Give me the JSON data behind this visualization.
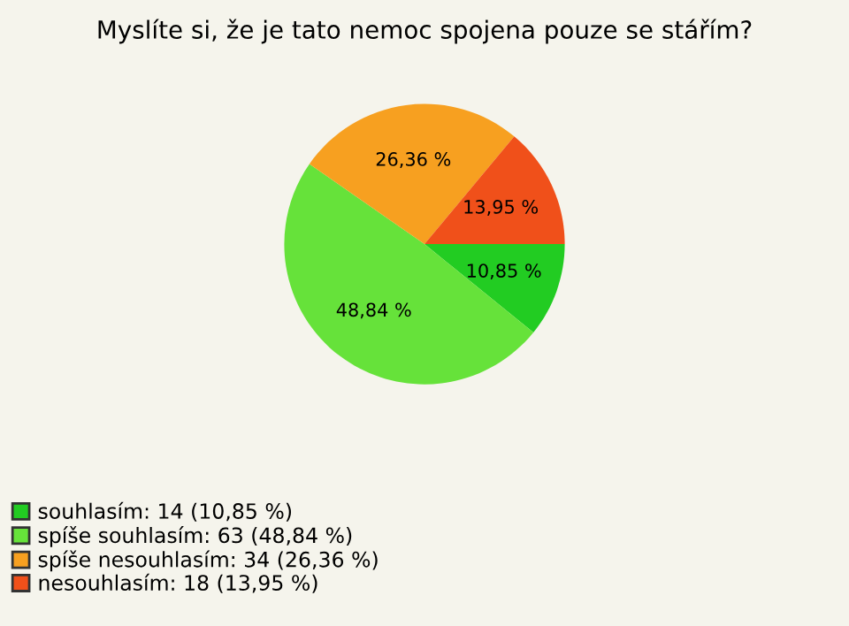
{
  "chart_data": {
    "type": "pie",
    "title": "Myslíte si, že je tato nemoc spojena pouze se stářím?",
    "categories": [
      "souhlasím: 14 (10,85 %)",
      "spíše souhlasím: 63 (48,84 %)",
      "spíše nesouhlasím: 34 (26,36 %)",
      "nesouhlasím: 18 (13,95 %)"
    ],
    "values": [
      10.85,
      48.84,
      26.36,
      13.95
    ],
    "value_labels": [
      "10,85 %",
      "48,84 %",
      "26,36 %",
      "13,95 %"
    ],
    "colors": [
      "#22cc22",
      "#66e23a",
      "#f7a020",
      "#f0501a"
    ],
    "legend": "bottom left"
  }
}
